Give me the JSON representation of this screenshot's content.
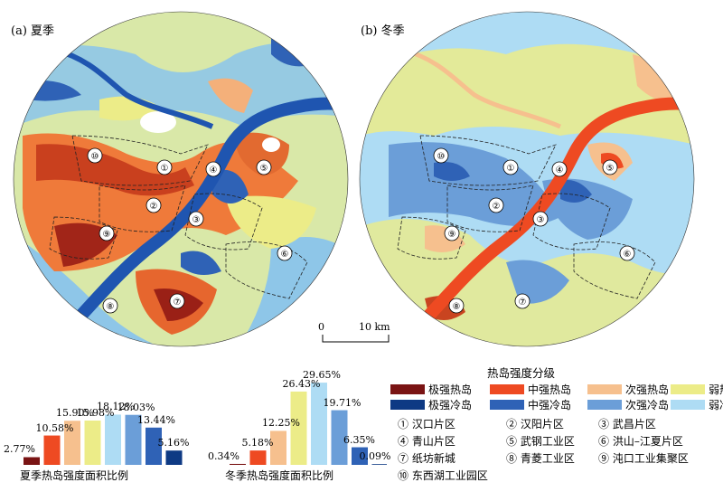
{
  "maps": {
    "summer_label": "(a) 夏季",
    "winter_label": "(b) 冬季"
  },
  "scale_bar": {
    "zero": "0",
    "end": "10 km"
  },
  "colors": {
    "extreme_heat": "#7a1414",
    "medium_heat": "#ee4a22",
    "sub_heat": "#f6c08e",
    "weak_heat": "#ecec88",
    "extreme_cold": "#0e3a84",
    "medium_cold": "#2f62b6",
    "sub_cold": "#6b9ed8",
    "weak_cold": "#aedcf4"
  },
  "legend": {
    "title": "热岛强度分级",
    "classes": [
      {
        "key": "extreme_heat",
        "label": "极强热岛"
      },
      {
        "key": "medium_heat",
        "label": "中强热岛"
      },
      {
        "key": "sub_heat",
        "label": "次强热岛"
      },
      {
        "key": "weak_heat",
        "label": "弱热岛"
      },
      {
        "key": "extreme_cold",
        "label": "极强冷岛"
      },
      {
        "key": "medium_cold",
        "label": "中强冷岛"
      },
      {
        "key": "sub_cold",
        "label": "次强冷岛"
      },
      {
        "key": "weak_cold",
        "label": "弱冷岛"
      }
    ]
  },
  "districts": [
    {
      "num": "①",
      "name": "汉口片区"
    },
    {
      "num": "②",
      "name": "汉阳片区"
    },
    {
      "num": "③",
      "name": "武昌片区"
    },
    {
      "num": "④",
      "name": "青山片区"
    },
    {
      "num": "⑤",
      "name": "武钢工业区"
    },
    {
      "num": "⑥",
      "name": "洪山–江夏片区"
    },
    {
      "num": "⑦",
      "name": "纸坊新城"
    },
    {
      "num": "⑧",
      "name": "青菱工业区"
    },
    {
      "num": "⑨",
      "name": "沌口工业集聚区"
    },
    {
      "num": "⑩",
      "name": "东西湖工业园区"
    }
  ],
  "chart_data": [
    {
      "type": "bar",
      "title": "夏季热岛强度面积比例",
      "categories": [
        "极强热岛",
        "中强热岛",
        "次强热岛",
        "弱热岛",
        "弱冷岛",
        "次强冷岛",
        "中强冷岛",
        "极强冷岛"
      ],
      "values": [
        2.77,
        10.58,
        15.9,
        15.98,
        18.12,
        18.03,
        13.44,
        5.16
      ],
      "labels": [
        "2.77%",
        "10.58%",
        "15.90%",
        "15.98%",
        "18.12%",
        "18.03%",
        "13.44%",
        "5.16%"
      ],
      "unit": "%"
    },
    {
      "type": "bar",
      "title": "冬季热岛强度面积比例",
      "categories": [
        "极强热岛",
        "中强热岛",
        "次强热岛",
        "弱热岛",
        "弱冷岛",
        "次强冷岛",
        "中强冷岛",
        "极强冷岛"
      ],
      "values": [
        0.34,
        5.18,
        12.25,
        26.43,
        29.65,
        19.71,
        6.35,
        0.09
      ],
      "labels": [
        "0.34%",
        "5.18%",
        "12.25%",
        "26.43%",
        "29.65%",
        "19.71%",
        "6.35%",
        "0.09%"
      ],
      "unit": "%"
    }
  ]
}
